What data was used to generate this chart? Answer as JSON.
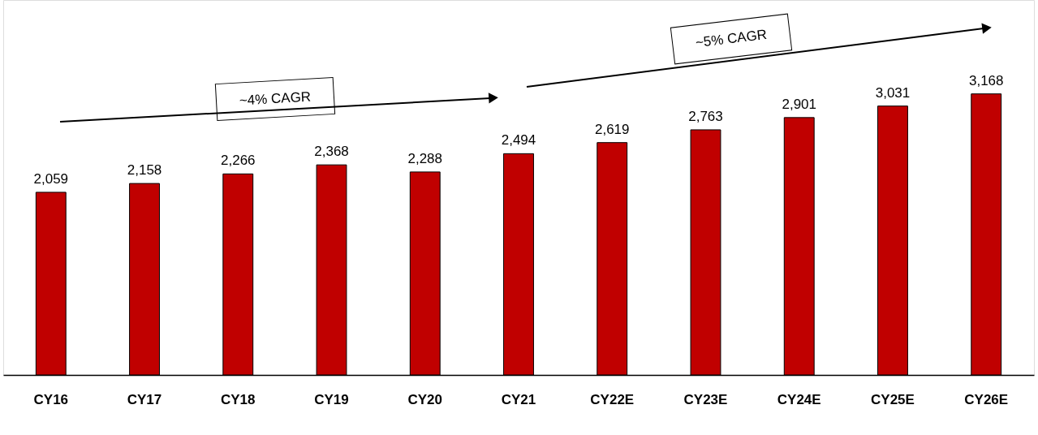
{
  "chart_data": {
    "type": "bar",
    "categories": [
      "CY16",
      "CY17",
      "CY18",
      "CY19",
      "CY20",
      "CY21",
      "CY22E",
      "CY23E",
      "CY24E",
      "CY25E",
      "CY26E"
    ],
    "values": [
      2059,
      2158,
      2266,
      2368,
      2288,
      2494,
      2619,
      2763,
      2901,
      3031,
      3168
    ],
    "color": "#c00000",
    "value_labels": [
      "2,059",
      "2,158",
      "2,266",
      "2,368",
      "2,288",
      "2,494",
      "2,619",
      "2,763",
      "2,901",
      "3,031",
      "3,168"
    ],
    "grid": false,
    "annotations": [
      "~4% CAGR",
      "~5% CAGR"
    ]
  }
}
